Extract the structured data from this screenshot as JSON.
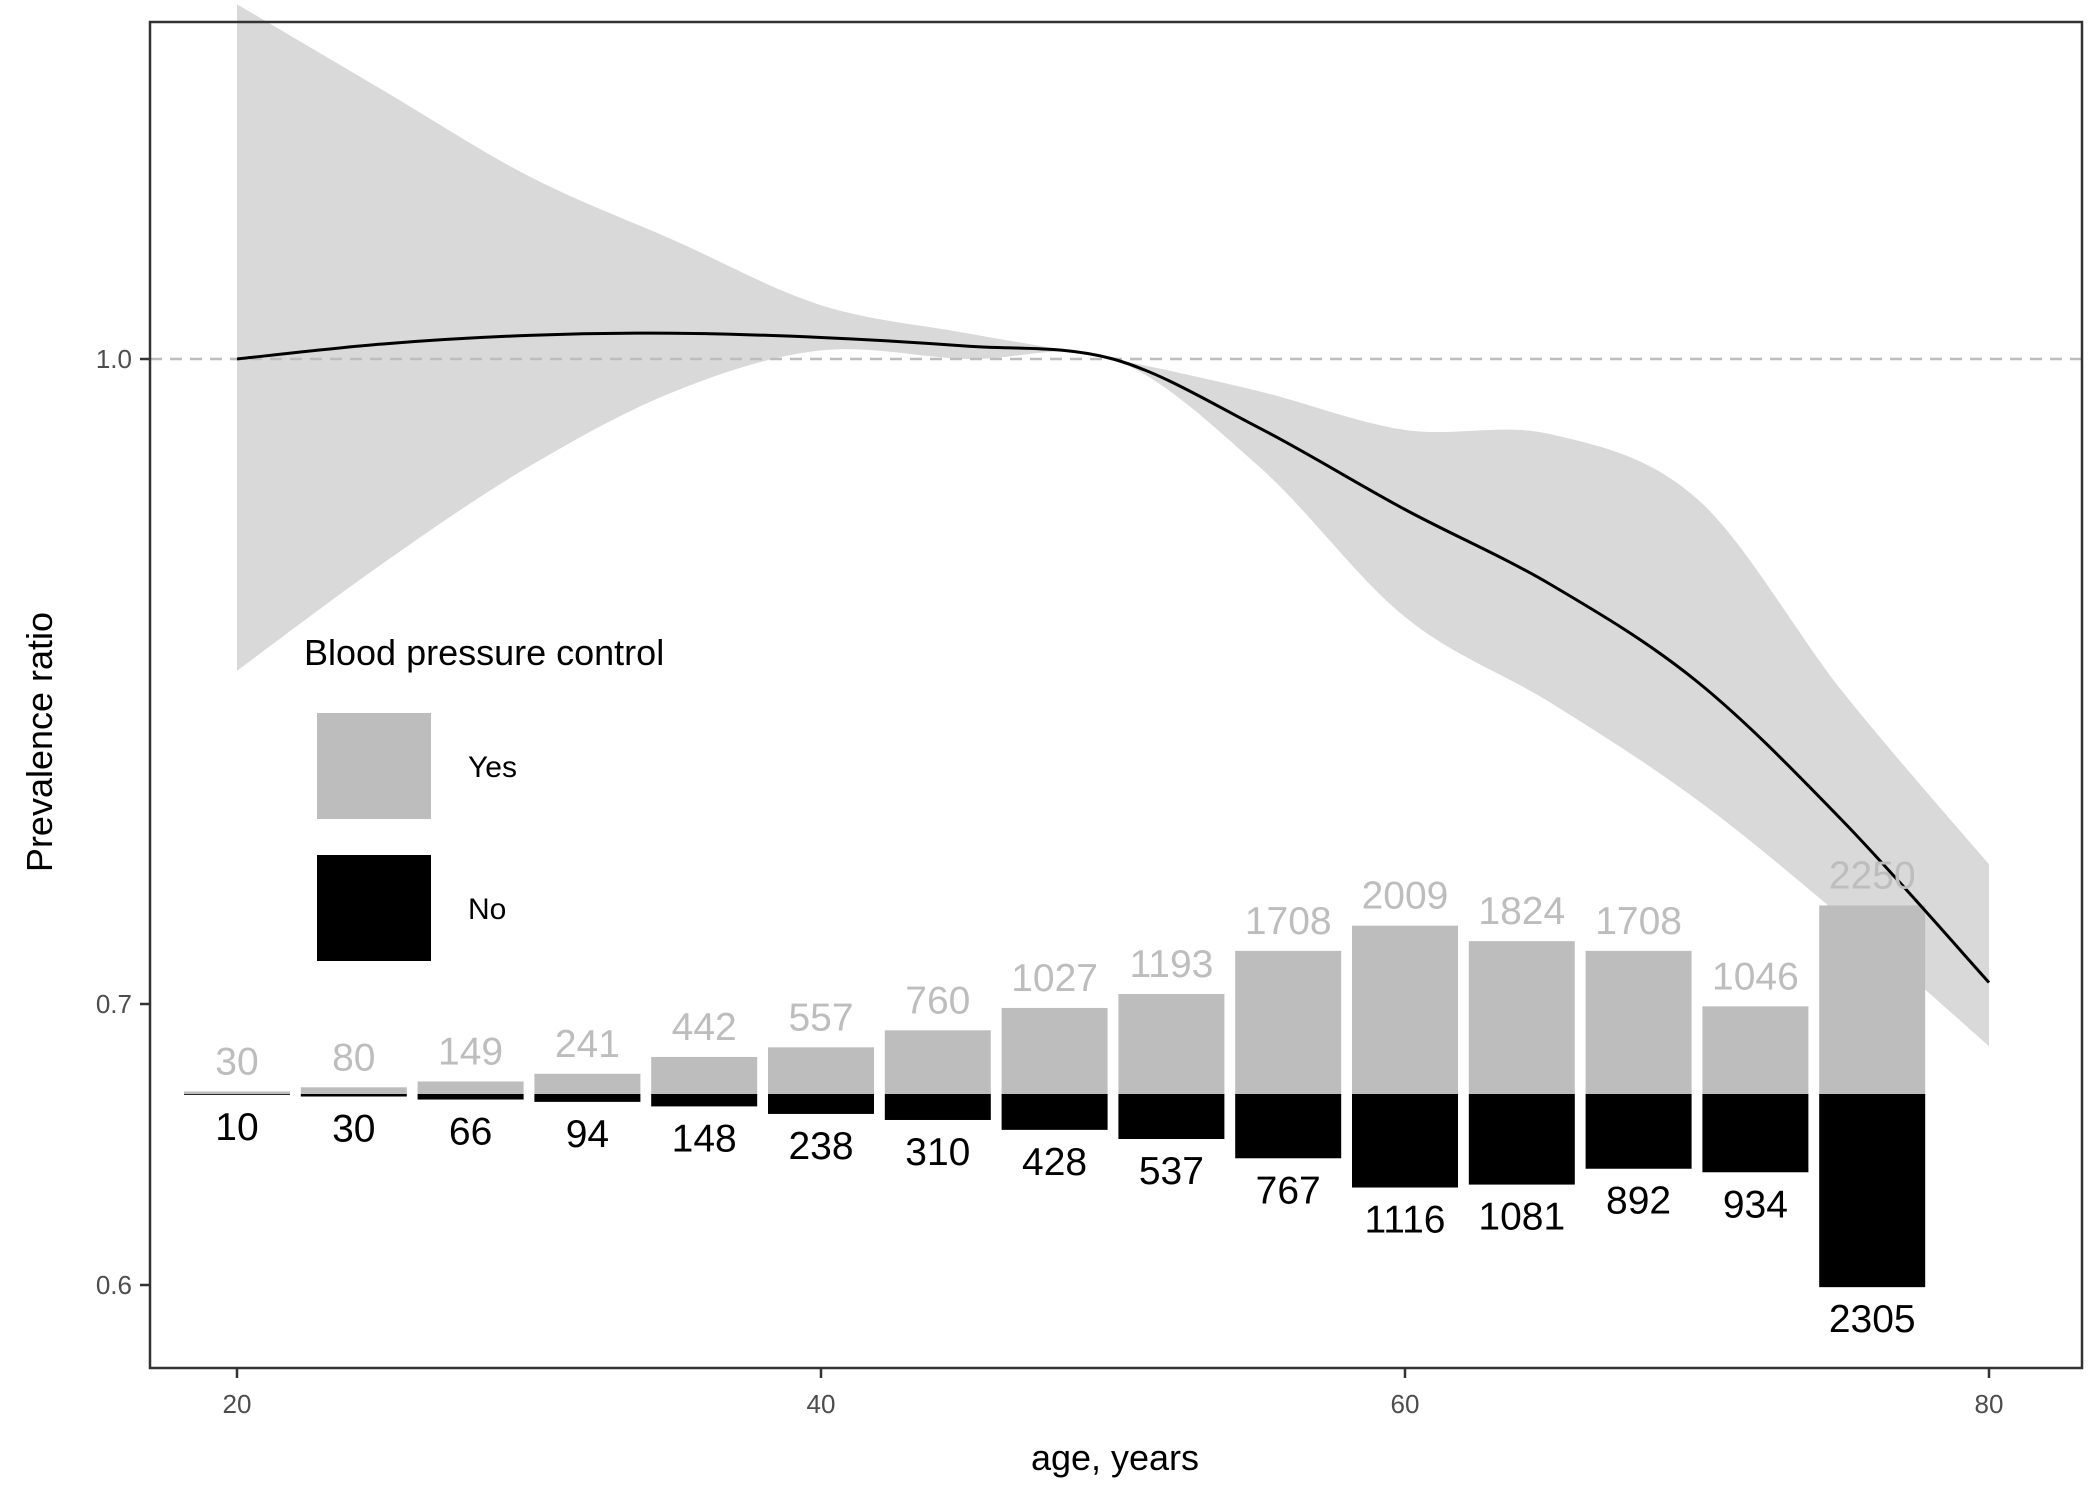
{
  "chart_data": {
    "type": "line",
    "xlabel": "age, years",
    "ylabel": "Prevalence ratio",
    "xlim": [
      18.5,
      81.5
    ],
    "ylim": [
      0.575,
      1.28
    ],
    "x_ticks": [
      20,
      40,
      60,
      80
    ],
    "y_ticks": [
      0.6,
      0.7,
      1.0
    ],
    "y_tick_labels": [
      "0.6",
      "0.7",
      "1.0"
    ],
    "reference_line": {
      "y": 1.0,
      "style": "dashed",
      "color": "#bdbdbd"
    },
    "grid": false,
    "curve": {
      "x": [
        20,
        25,
        30,
        35,
        40,
        45,
        50,
        55,
        60,
        65,
        70,
        75,
        80
      ],
      "y": [
        1.0,
        1.007,
        1.011,
        1.012,
        1.01,
        1.006,
        1.0,
        0.968,
        0.93,
        0.895,
        0.85,
        0.785,
        0.71
      ],
      "lower": [
        0.855,
        0.905,
        0.95,
        0.985,
        1.004,
        1.0,
        1.0,
        0.95,
        0.88,
        0.84,
        0.795,
        0.74,
        0.685
      ],
      "upper": [
        1.165,
        1.125,
        1.085,
        1.055,
        1.025,
        1.012,
        1.0,
        0.985,
        0.967,
        0.965,
        0.935,
        0.845,
        0.765
      ],
      "color": "#000000",
      "band_color": "#d9d9d9"
    },
    "legend": {
      "title": "Blood pressure control",
      "position": "left",
      "entries": [
        {
          "label": "Yes",
          "color": "#bdbdbd"
        },
        {
          "label": "No",
          "color": "#000000"
        }
      ]
    },
    "bar_groups": {
      "x": [
        20,
        24,
        28,
        32,
        36,
        40,
        44,
        48,
        52,
        56,
        60,
        64,
        68,
        72,
        76
      ],
      "yes": [
        30,
        80,
        149,
        241,
        442,
        557,
        760,
        1027,
        1193,
        1708,
        2009,
        1824,
        1708,
        1046,
        2250
      ],
      "no": [
        10,
        30,
        66,
        94,
        148,
        238,
        310,
        428,
        537,
        767,
        1116,
        1081,
        892,
        934,
        2305
      ],
      "yes_label": "Yes",
      "no_label": "No"
    }
  }
}
